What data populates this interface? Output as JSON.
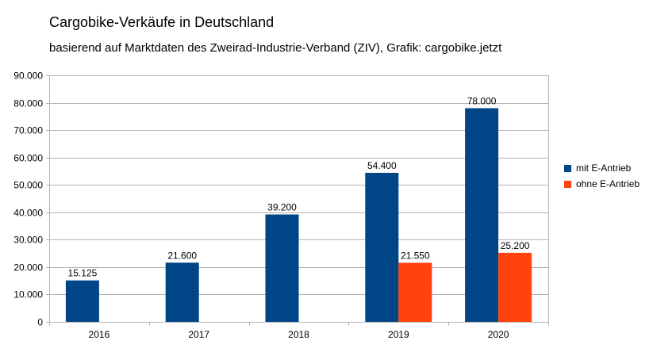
{
  "chart_data": {
    "type": "bar",
    "title": "Cargobike-Verkäufe in Deutschland",
    "subtitle": "basierend auf Marktdaten des Zweirad-Industrie-Verband (ZIV), Grafik: cargobike.jetzt",
    "categories": [
      "2016",
      "2017",
      "2018",
      "2019",
      "2020"
    ],
    "series": [
      {
        "name": "mit E-Antrieb",
        "color": "#004586",
        "values": [
          15125,
          21600,
          39200,
          54400,
          78000
        ],
        "labels": [
          "15.125",
          "21.600",
          "39.200",
          "54.400",
          "78.000"
        ]
      },
      {
        "name": "ohne E-Antrieb",
        "color": "#ff420e",
        "values": [
          null,
          null,
          null,
          21550,
          25200
        ],
        "labels": [
          "",
          "",
          "",
          "21.550",
          "25.200"
        ]
      }
    ],
    "ylim": [
      0,
      90000
    ],
    "yticks": [
      0,
      10000,
      20000,
      30000,
      40000,
      50000,
      60000,
      70000,
      80000,
      90000
    ],
    "ytick_labels": [
      "0",
      "10.000",
      "20.000",
      "30.000",
      "40.000",
      "50.000",
      "60.000",
      "70.000",
      "80.000",
      "90.000"
    ],
    "grid": true,
    "legend": "right"
  }
}
